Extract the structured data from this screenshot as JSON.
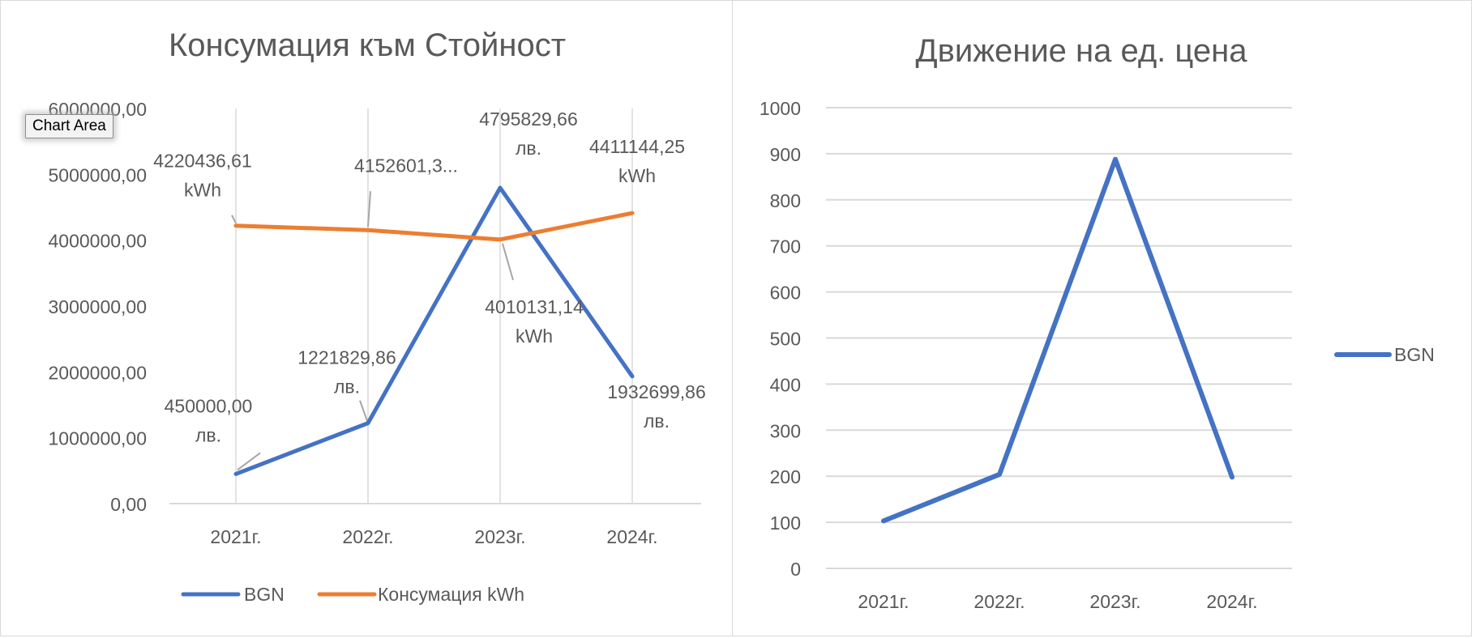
{
  "tooltip": {
    "text": "Chart Area"
  },
  "chart_data": [
    {
      "type": "line",
      "title": "Консумация към Стойност",
      "categories": [
        "2021г.",
        "2022г.",
        "2023г.",
        "2024г."
      ],
      "ylim": [
        0,
        6000000
      ],
      "y_ticks": [
        "0,00",
        "1000000,00",
        "2000000,00",
        "3000000,00",
        "4000000,00",
        "5000000,00",
        "6000000,00"
      ],
      "grid": "vertical category lines",
      "legend_position": "bottom",
      "series": [
        {
          "name": "BGN",
          "color": "#4472c4",
          "values": [
            450000.0,
            1221829.86,
            4795829.66,
            1932699.86
          ],
          "labels": [
            [
              "450000,00",
              "лв."
            ],
            [
              "1221829,86",
              "лв."
            ],
            [
              "4795829,66",
              "лв."
            ],
            [
              "1932699,86",
              "лв."
            ]
          ]
        },
        {
          "name": "Консумация kWh",
          "color": "#ed7d31",
          "values": [
            4220436.61,
            4152601.3,
            4010131.14,
            4411144.25
          ],
          "labels": [
            [
              "4220436,61",
              "kWh"
            ],
            [
              "4152601,3..."
            ],
            [
              "4010131,14",
              "kWh"
            ],
            [
              "4411144,25",
              "kWh"
            ]
          ]
        }
      ]
    },
    {
      "type": "line",
      "title": "Движение на ед. цена",
      "categories": [
        "2021г.",
        "2022г.",
        "2023г.",
        "2024г."
      ],
      "ylim": [
        0,
        1000
      ],
      "y_ticks": [
        "0",
        "100",
        "200",
        "300",
        "400",
        "500",
        "600",
        "700",
        "800",
        "900",
        "1000"
      ],
      "grid": "horizontal",
      "legend_position": "right",
      "series": [
        {
          "name": "BGN",
          "color": "#4472c4",
          "values": [
            103,
            204,
            888,
            198
          ]
        }
      ]
    }
  ]
}
